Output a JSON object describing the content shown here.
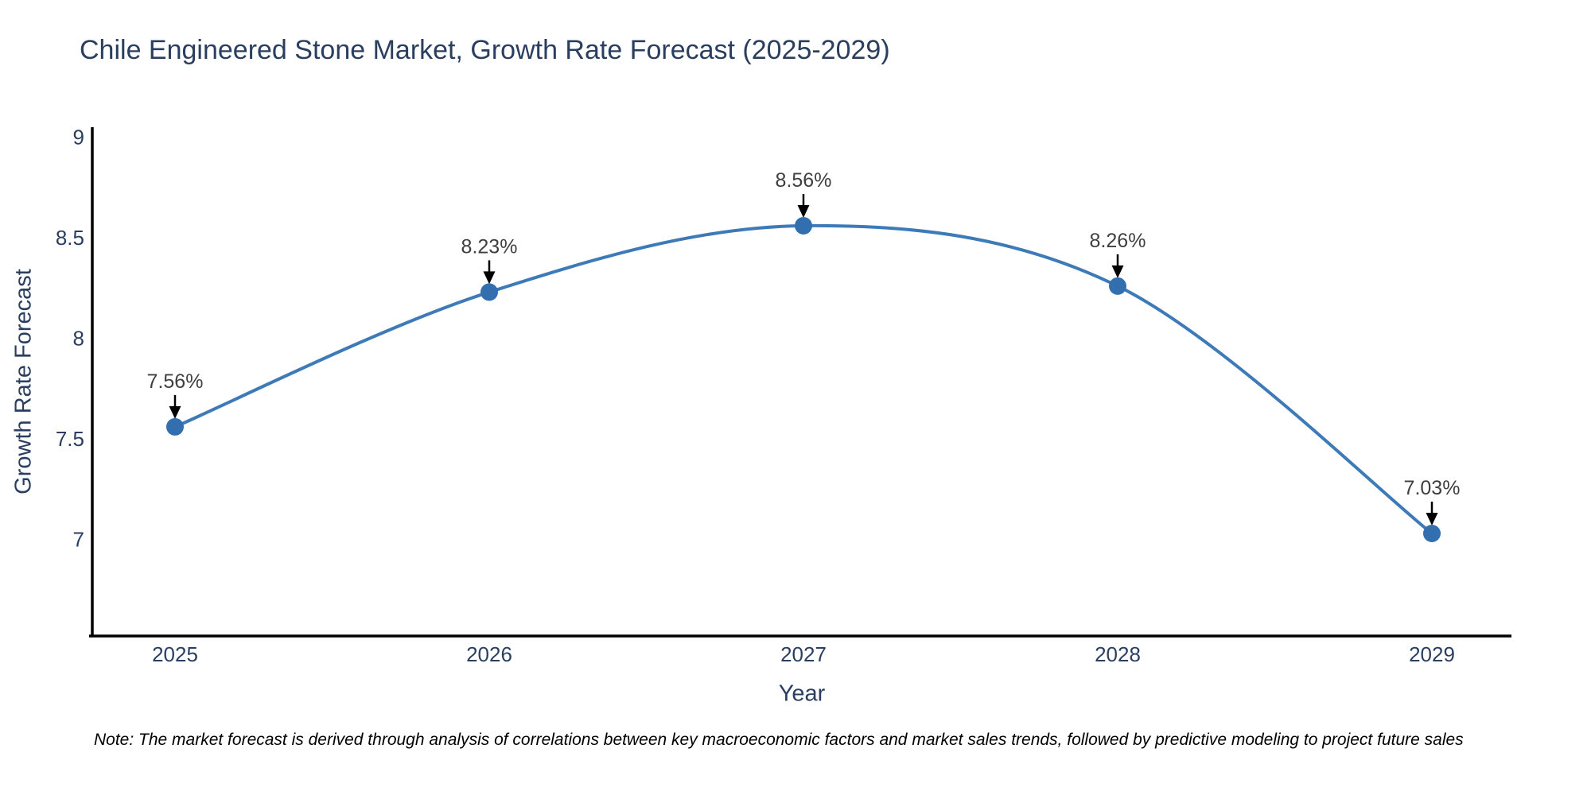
{
  "title": "Chile Engineered Stone Market, Growth Rate Forecast (2025-2029)",
  "note": "Note: The market forecast is derived through analysis of correlations between key macroeconomic factors and market sales trends, followed by predictive modeling to project future sales",
  "chart_data": {
    "type": "line",
    "title": "Chile Engineered Stone Market, Growth Rate Forecast (2025-2029)",
    "xlabel": "Year",
    "ylabel": "Growth Rate Forecast",
    "x": [
      "2025",
      "2026",
      "2027",
      "2028",
      "2029"
    ],
    "values": [
      7.56,
      8.23,
      8.56,
      8.26,
      7.03
    ],
    "point_labels": [
      "7.56%",
      "8.23%",
      "8.56%",
      "8.26%",
      "7.03%"
    ],
    "yticks": [
      "9",
      "8.5",
      "8",
      "7.5",
      "7"
    ],
    "ytick_values": [
      9,
      8.5,
      8,
      7.5,
      7
    ],
    "ylim": [
      6.52,
      9.05
    ],
    "line_shape": "spline",
    "grid": false,
    "legend": "none",
    "annotations_arrow": "down-arrow-to-point",
    "colors": {
      "line": "#3d7ab7",
      "marker": "#336fae",
      "axis": "#000000",
      "tick_text": "#2a3f5f",
      "title_text": "#2a3f5f",
      "annotation_text": "#3f3f3f",
      "arrow": "#000000",
      "note_text": "#000000",
      "background": "#ffffff"
    }
  }
}
